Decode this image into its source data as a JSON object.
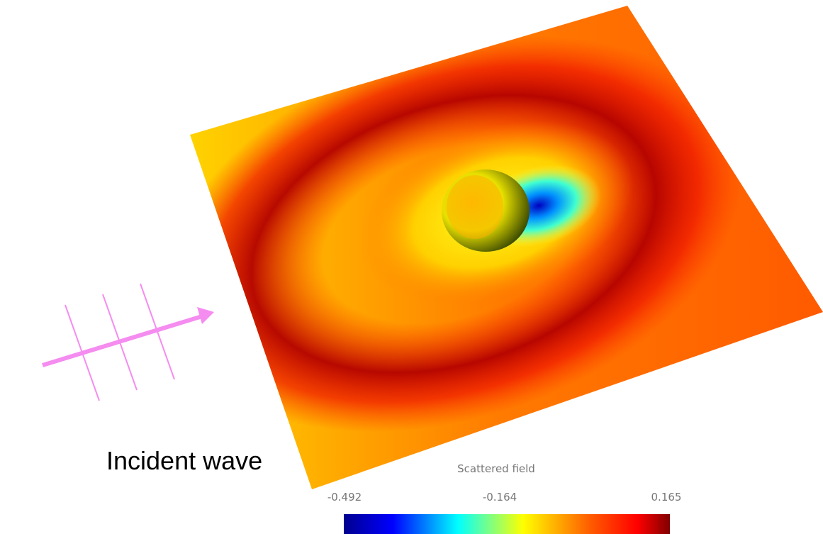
{
  "labels": {
    "incident": "Incident wave"
  },
  "colorbar": {
    "title": "Scattered field",
    "ticks": [
      "-0.492",
      "-0.164",
      "0.165"
    ]
  }
}
